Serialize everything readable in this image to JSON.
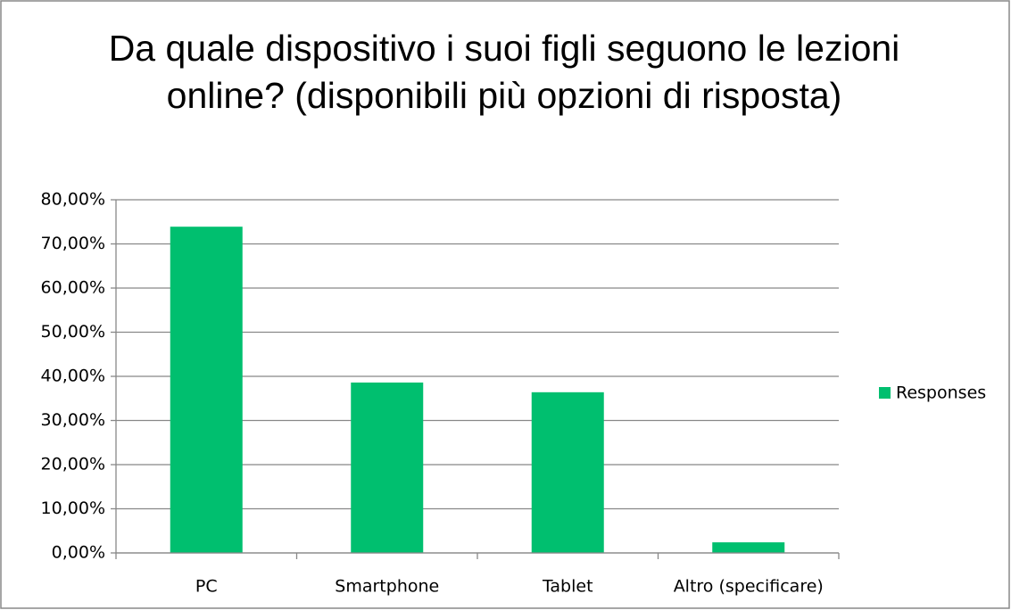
{
  "chart_data": {
    "type": "bar",
    "title": "Da quale dispositivo i suoi figli seguono le lezioni online? (disponibili più opzioni di risposta)",
    "categories": [
      "PC",
      "Smartphone",
      "Tablet",
      "Altro (specificare)"
    ],
    "series": [
      {
        "name": "Responses",
        "color": "#00bf6f",
        "values": [
          73.9,
          38.6,
          36.4,
          2.4
        ]
      }
    ],
    "ylim": [
      0,
      80
    ],
    "yticks": [
      {
        "value": 0,
        "label": "0,00%"
      },
      {
        "value": 10,
        "label": "10,00%"
      },
      {
        "value": 20,
        "label": "20,00%"
      },
      {
        "value": 30,
        "label": "30,00%"
      },
      {
        "value": 40,
        "label": "40,00%"
      },
      {
        "value": 50,
        "label": "50,00%"
      },
      {
        "value": 60,
        "label": "60,00%"
      },
      {
        "value": 70,
        "label": "70,00%"
      },
      {
        "value": 80,
        "label": "80,00%"
      }
    ],
    "grid": true,
    "legend": "right"
  }
}
